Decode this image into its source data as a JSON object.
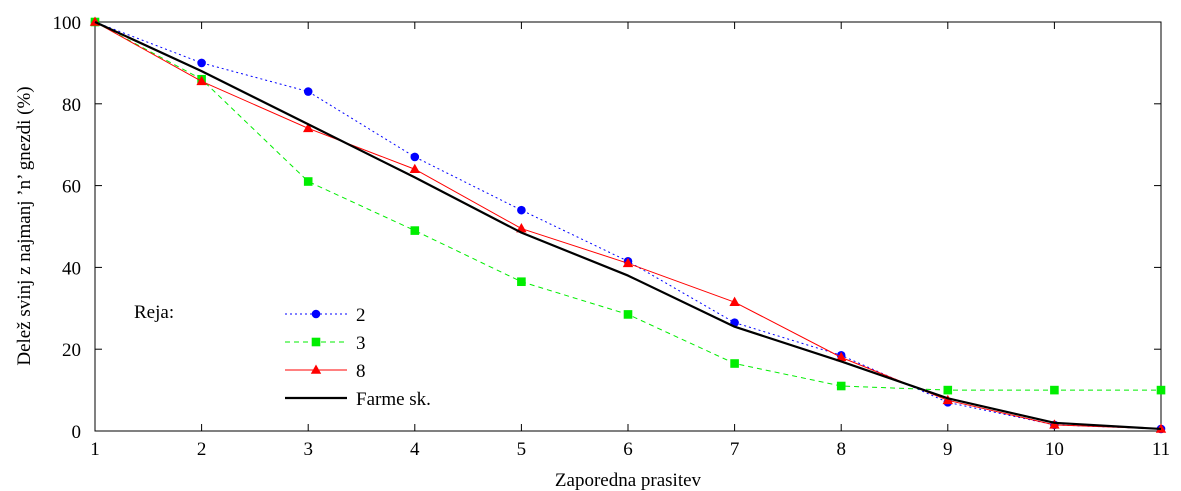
{
  "chart_data": {
    "type": "line",
    "xlabel": "Zaporedna prasitev",
    "ylabel": "Delež svinj z najmanj ’n’ gnezdi (%)",
    "xlim": [
      1,
      11
    ],
    "ylim": [
      0,
      100
    ],
    "x_ticks": [
      1,
      2,
      3,
      4,
      5,
      6,
      7,
      8,
      9,
      10,
      11
    ],
    "y_ticks": [
      0,
      20,
      40,
      60,
      80,
      100
    ],
    "grid": false,
    "legend": {
      "title": "Reja:",
      "placement": "lower-left"
    },
    "x": [
      1,
      2,
      3,
      4,
      5,
      6,
      7,
      8,
      9,
      10,
      11
    ],
    "series": [
      {
        "name": "2",
        "color": "#0000ff",
        "line_style": "dotted",
        "marker": "circle",
        "values": [
          100,
          90,
          83,
          67,
          54,
          41.5,
          26.5,
          18.5,
          7,
          1.5,
          0.5
        ]
      },
      {
        "name": "3",
        "color": "#00ee00",
        "line_style": "dashed",
        "marker": "square",
        "values": [
          100,
          86,
          61,
          49,
          36.5,
          28.5,
          16.5,
          11,
          10,
          10,
          10
        ]
      },
      {
        "name": "8",
        "color": "#ff0000",
        "line_style": "solid",
        "marker": "triangle",
        "values": [
          100,
          85.5,
          74,
          64,
          49.5,
          41,
          31.5,
          18,
          7.5,
          1.5,
          0.5
        ]
      },
      {
        "name": "Farme sk.",
        "color": "#000000",
        "line_style": "solid-thick",
        "marker": "none",
        "values": [
          100,
          88,
          75,
          62,
          48.5,
          38,
          25.5,
          17,
          8,
          2,
          0.5
        ]
      }
    ]
  }
}
